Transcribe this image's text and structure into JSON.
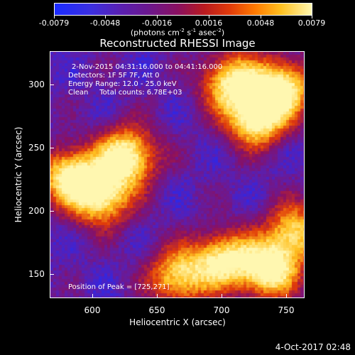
{
  "colorbar": {
    "ticks": [
      "-0.0079",
      "-0.0048",
      "-0.0016",
      "0.0016",
      "0.0048",
      "0.0079"
    ],
    "units": "(photons cm",
    "units_exp1": "-2",
    "units_mid": " s",
    "units_exp2": "-1",
    "units_mid2": " asec",
    "units_exp3": "-2",
    "units_end": ")",
    "colors": [
      "#1a2bff",
      "#5a1fb0",
      "#8a1060",
      "#e03a0a",
      "#ffc020",
      "#fff7b0"
    ]
  },
  "chart_data": {
    "type": "heatmap",
    "title": "Reconstructed RHESSI Image",
    "xlabel": "Heliocentric X (arcsec)",
    "ylabel": "Heliocentric Y (arcsec)",
    "xlim": [
      566,
      763
    ],
    "ylim": [
      127,
      323
    ],
    "xticks": [
      600,
      650,
      700,
      750
    ],
    "yticks": [
      150,
      200,
      250,
      300
    ],
    "value_range": [
      -0.0079,
      0.0079
    ],
    "bright_regions": [
      {
        "x": 625,
        "y": 240,
        "value": 0.0079
      },
      {
        "x": 605,
        "y": 208,
        "value": 0.0065
      },
      {
        "x": 580,
        "y": 225,
        "value": 0.006
      },
      {
        "x": 725,
        "y": 271,
        "value": 0.0079
      },
      {
        "x": 745,
        "y": 295,
        "value": 0.007
      },
      {
        "x": 705,
        "y": 300,
        "value": 0.0055
      },
      {
        "x": 735,
        "y": 150,
        "value": 0.0075
      },
      {
        "x": 700,
        "y": 158,
        "value": 0.006
      },
      {
        "x": 665,
        "y": 145,
        "value": 0.005
      },
      {
        "x": 755,
        "y": 180,
        "value": 0.0045
      }
    ],
    "annotations": {
      "time_range": "2-Nov-2015 04:31:16.000 to 04:41:16.000",
      "detectors": "Detectors: 1F 5F 7F, Att 0",
      "energy": "Energy Range: 12.0 - 25.0 keV",
      "clean": "Clean     Total counts: 6.78E+03",
      "peak": "Position of Peak = [725,271]"
    }
  },
  "timestamp": "4-Oct-2017 02:48"
}
